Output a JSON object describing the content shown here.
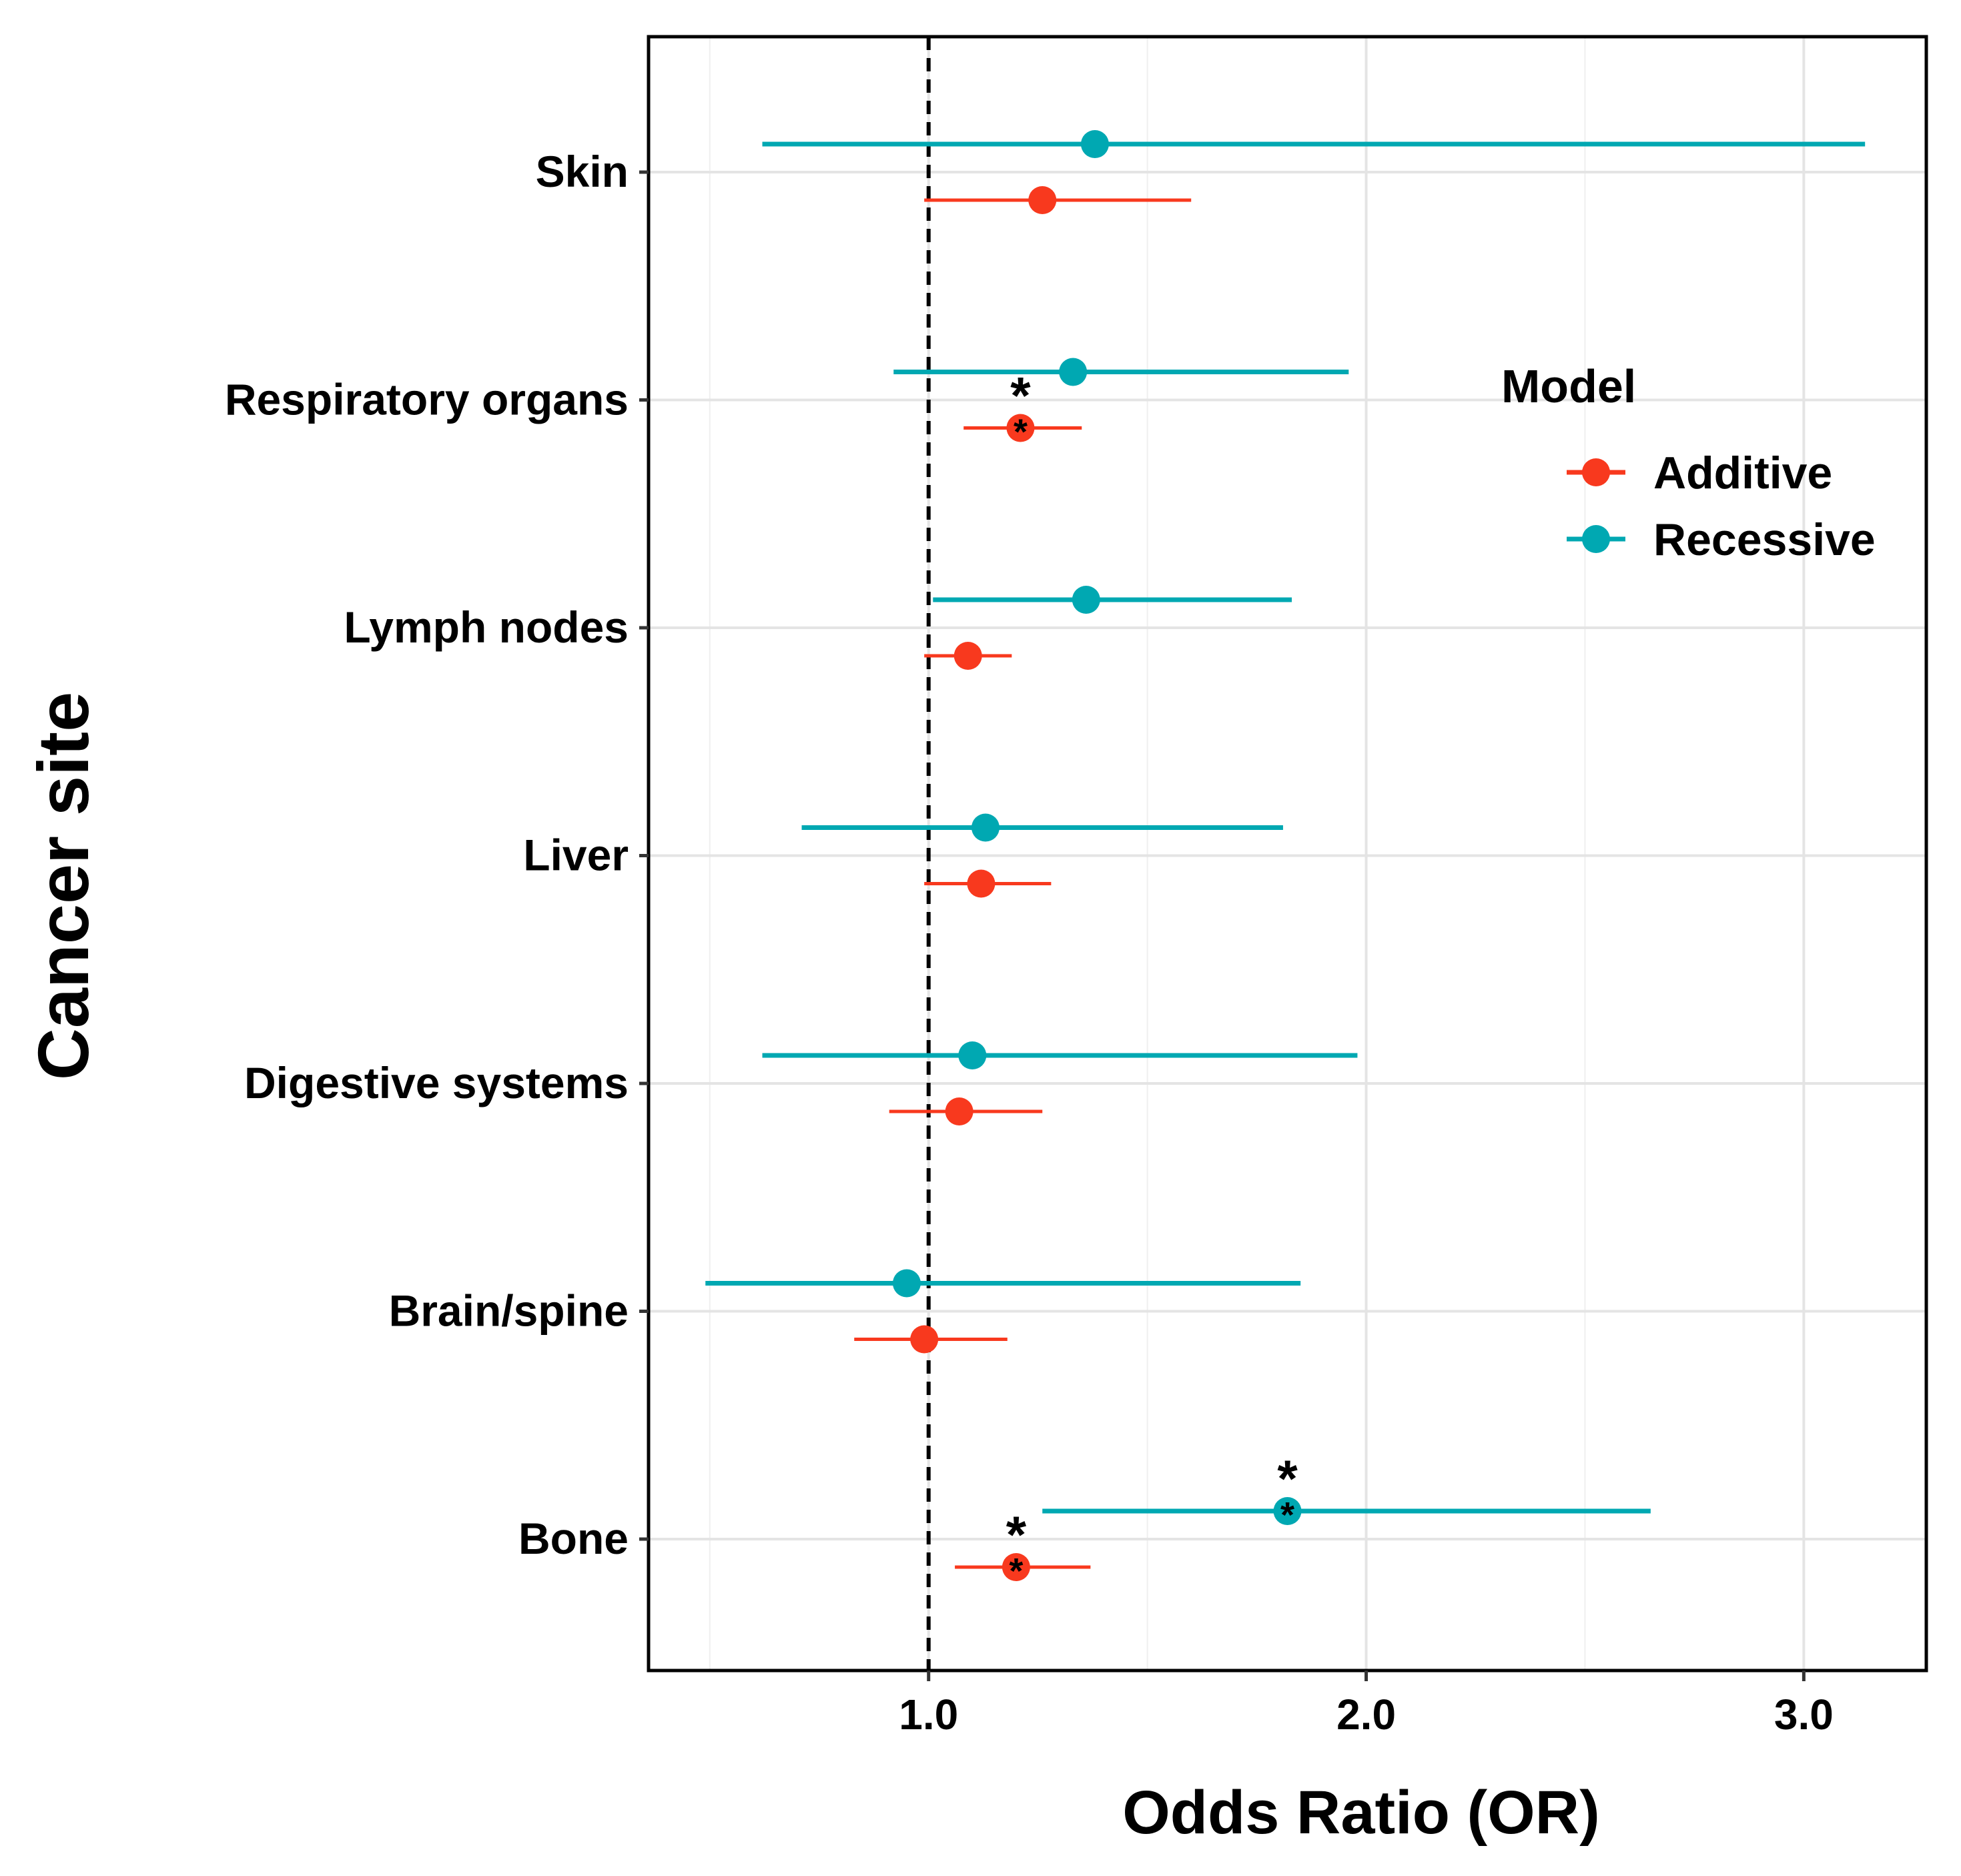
{
  "chart_data": {
    "type": "forest",
    "xlabel": "Odds Ratio (OR)",
    "ylabel": "Cancer site",
    "xlim": [
      0.36,
      3.28
    ],
    "x_ticks": [
      {
        "value": 1.0,
        "label": "1.0"
      },
      {
        "value": 2.0,
        "label": "2.0"
      },
      {
        "value": 3.0,
        "label": "3.0"
      }
    ],
    "reference_line": 1.0,
    "grid": true,
    "legend": {
      "title": "Model",
      "position": "right",
      "entries": [
        {
          "name": "Additive",
          "color": "#f8391e"
        },
        {
          "name": "Recessive",
          "color": "#00a8b2"
        }
      ]
    },
    "significance_marker": "*",
    "categories": [
      "Skin",
      "Respiratory organs",
      "Lymph nodes",
      "Liver",
      "Digestive systems",
      "Brain/spine",
      "Bone"
    ],
    "series": [
      {
        "name": "Recessive",
        "color": "#00a8b2",
        "or": [
          1.38,
          1.33,
          1.36,
          1.13,
          1.1,
          0.95,
          1.82
        ],
        "lower": [
          0.62,
          0.92,
          1.01,
          0.71,
          0.62,
          0.49,
          1.26
        ],
        "upper": [
          3.14,
          1.96,
          1.83,
          1.81,
          1.98,
          1.85,
          2.65
        ],
        "significant": [
          false,
          false,
          false,
          false,
          false,
          false,
          true
        ]
      },
      {
        "name": "Additive",
        "color": "#f8391e",
        "or": [
          1.26,
          1.21,
          1.09,
          1.12,
          1.07,
          0.99,
          1.2
        ],
        "lower": [
          0.99,
          1.08,
          0.99,
          0.99,
          0.91,
          0.83,
          1.06
        ],
        "upper": [
          1.6,
          1.35,
          1.19,
          1.28,
          1.26,
          1.18,
          1.37
        ],
        "significant": [
          false,
          true,
          false,
          false,
          false,
          false,
          true
        ]
      }
    ]
  }
}
